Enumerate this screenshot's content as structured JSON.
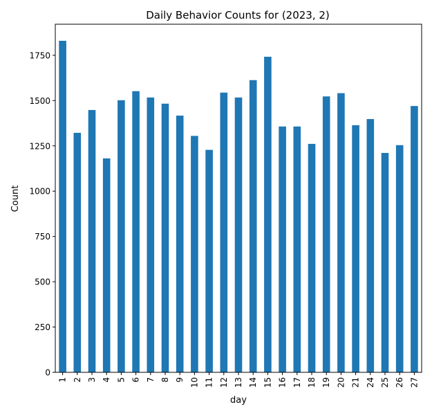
{
  "chart_data": {
    "type": "bar",
    "title": "Daily Behavior Counts for (2023, 2)",
    "xlabel": "day",
    "ylabel": "Count",
    "categories": [
      "1",
      "2",
      "3",
      "4",
      "5",
      "6",
      "7",
      "8",
      "9",
      "10",
      "11",
      "12",
      "13",
      "14",
      "15",
      "16",
      "17",
      "18",
      "19",
      "20",
      "21",
      "24",
      "25",
      "26",
      "27"
    ],
    "values": [
      1830,
      1322,
      1448,
      1181,
      1502,
      1552,
      1517,
      1483,
      1417,
      1305,
      1228,
      1544,
      1517,
      1613,
      1742,
      1357,
      1357,
      1261,
      1523,
      1541,
      1364,
      1398,
      1211,
      1254,
      1470
    ],
    "yticks": [
      0,
      250,
      500,
      750,
      1000,
      1250,
      1500,
      1750
    ],
    "ylim": [
      0,
      1921.5
    ],
    "grid": false,
    "bar_color": "#1f77b4"
  }
}
